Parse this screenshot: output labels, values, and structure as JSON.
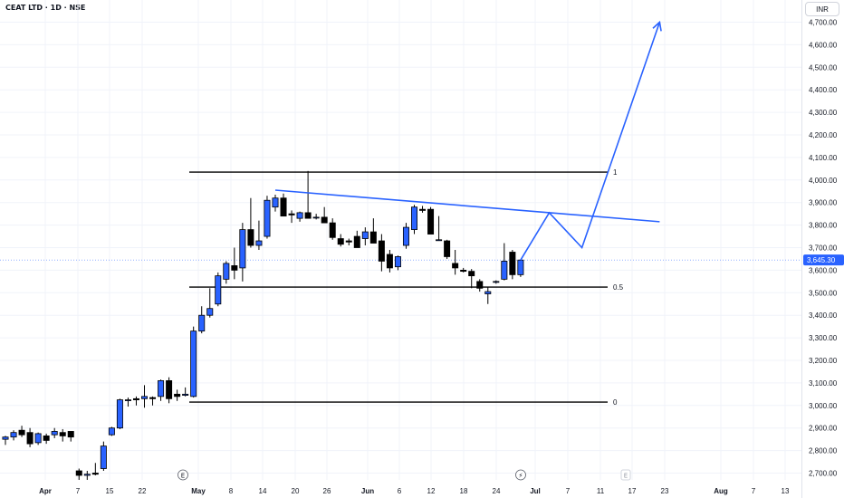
{
  "header": {
    "title": "CEAT LTD · 1D · NSE",
    "currency": "INR"
  },
  "chart_data": {
    "type": "candlestick",
    "title": "CEAT LTD · 1D · NSE",
    "ylim": [
      2650,
      4770
    ],
    "y_ticks": [
      "4,700.00",
      "4,600.00",
      "4,500.00",
      "4,400.00",
      "4,300.00",
      "4,200.00",
      "4,100.00",
      "4,000.00",
      "3,900.00",
      "3,800.00",
      "3,700.00",
      "3,600.00",
      "3,500.00",
      "3,400.00",
      "3,300.00",
      "3,200.00",
      "3,100.00",
      "3,000.00",
      "2,900.00",
      "2,800.00",
      "2,700.00"
    ],
    "y_tick_values": [
      4700,
      4600,
      4500,
      4400,
      4300,
      4200,
      4100,
      4000,
      3900,
      3800,
      3700,
      3600,
      3500,
      3400,
      3300,
      3200,
      3100,
      3000,
      2900,
      2800,
      2700
    ],
    "x_ticks": [
      {
        "label": "Apr",
        "month": true
      },
      {
        "label": "7"
      },
      {
        "label": "15"
      },
      {
        "label": "22"
      },
      {
        "label": "May",
        "month": true
      },
      {
        "label": "8"
      },
      {
        "label": "14"
      },
      {
        "label": "20"
      },
      {
        "label": "26"
      },
      {
        "label": "Jun",
        "month": true
      },
      {
        "label": "6"
      },
      {
        "label": "12"
      },
      {
        "label": "18"
      },
      {
        "label": "24"
      },
      {
        "label": "Jul",
        "month": true
      },
      {
        "label": "7"
      },
      {
        "label": "11"
      },
      {
        "label": "17"
      },
      {
        "label": "23"
      },
      {
        "label": "Aug",
        "month": true
      },
      {
        "label": "7"
      },
      {
        "label": "13"
      }
    ],
    "current_price": "3,645.30",
    "current_price_value": 3645.3,
    "colors": {
      "up": "#2962ff",
      "down": "#000000",
      "price_line": "#2962ff",
      "drawing": "#2962ff",
      "level": "#000000",
      "grid": "#f0f3fa"
    },
    "candles": [
      {
        "o": 2850,
        "h": 2865,
        "l": 2825,
        "c": 2860
      },
      {
        "o": 2860,
        "h": 2890,
        "l": 2845,
        "c": 2880
      },
      {
        "o": 2890,
        "h": 2910,
        "l": 2860,
        "c": 2870
      },
      {
        "o": 2880,
        "h": 2900,
        "l": 2815,
        "c": 2830
      },
      {
        "o": 2835,
        "h": 2880,
        "l": 2825,
        "c": 2875
      },
      {
        "o": 2865,
        "h": 2875,
        "l": 2830,
        "c": 2845
      },
      {
        "o": 2870,
        "h": 2900,
        "l": 2855,
        "c": 2885
      },
      {
        "o": 2880,
        "h": 2895,
        "l": 2840,
        "c": 2865
      },
      {
        "o": 2885,
        "h": 2885,
        "l": 2840,
        "c": 2860
      },
      {
        "o": 2710,
        "h": 2720,
        "l": 2670,
        "c": 2690
      },
      {
        "o": 2690,
        "h": 2710,
        "l": 2670,
        "c": 2695
      },
      {
        "o": 2700,
        "h": 2745,
        "l": 2690,
        "c": 2695
      },
      {
        "o": 2720,
        "h": 2840,
        "l": 2710,
        "c": 2820
      },
      {
        "o": 2870,
        "h": 2905,
        "l": 2865,
        "c": 2900
      },
      {
        "o": 2900,
        "h": 3030,
        "l": 2895,
        "c": 3025
      },
      {
        "o": 3025,
        "h": 3035,
        "l": 2995,
        "c": 3025
      },
      {
        "o": 3030,
        "h": 3040,
        "l": 3000,
        "c": 3025
      },
      {
        "o": 3030,
        "h": 3090,
        "l": 2990,
        "c": 3040
      },
      {
        "o": 3035,
        "h": 3040,
        "l": 3000,
        "c": 3030
      },
      {
        "o": 3040,
        "h": 3115,
        "l": 3020,
        "c": 3110
      },
      {
        "o": 3110,
        "h": 3125,
        "l": 3010,
        "c": 3030
      },
      {
        "o": 3050,
        "h": 3070,
        "l": 3020,
        "c": 3040
      },
      {
        "o": 3045,
        "h": 3080,
        "l": 3040,
        "c": 3050
      },
      {
        "o": 3040,
        "h": 3350,
        "l": 3035,
        "c": 3330
      },
      {
        "o": 3330,
        "h": 3440,
        "l": 3320,
        "c": 3400
      },
      {
        "o": 3400,
        "h": 3520,
        "l": 3390,
        "c": 3430
      },
      {
        "o": 3450,
        "h": 3590,
        "l": 3440,
        "c": 3575
      },
      {
        "o": 3560,
        "h": 3640,
        "l": 3540,
        "c": 3630
      },
      {
        "o": 3620,
        "h": 3700,
        "l": 3560,
        "c": 3600
      },
      {
        "o": 3610,
        "h": 3810,
        "l": 3550,
        "c": 3780
      },
      {
        "o": 3780,
        "h": 3920,
        "l": 3700,
        "c": 3710
      },
      {
        "o": 3710,
        "h": 3820,
        "l": 3690,
        "c": 3730
      },
      {
        "o": 3750,
        "h": 3930,
        "l": 3740,
        "c": 3910
      },
      {
        "o": 3880,
        "h": 3935,
        "l": 3860,
        "c": 3920
      },
      {
        "o": 3920,
        "h": 3940,
        "l": 3840,
        "c": 3840
      },
      {
        "o": 3850,
        "h": 3865,
        "l": 3810,
        "c": 3845
      },
      {
        "o": 3830,
        "h": 3860,
        "l": 3815,
        "c": 3855
      },
      {
        "o": 3855,
        "h": 4040,
        "l": 3830,
        "c": 3830
      },
      {
        "o": 3835,
        "h": 3850,
        "l": 3825,
        "c": 3835
      },
      {
        "o": 3835,
        "h": 3880,
        "l": 3810,
        "c": 3810
      },
      {
        "o": 3810,
        "h": 3830,
        "l": 3735,
        "c": 3745
      },
      {
        "o": 3740,
        "h": 3760,
        "l": 3705,
        "c": 3715
      },
      {
        "o": 3730,
        "h": 3740,
        "l": 3710,
        "c": 3725
      },
      {
        "o": 3750,
        "h": 3775,
        "l": 3700,
        "c": 3700
      },
      {
        "o": 3740,
        "h": 3790,
        "l": 3710,
        "c": 3770
      },
      {
        "o": 3770,
        "h": 3830,
        "l": 3720,
        "c": 3720
      },
      {
        "o": 3730,
        "h": 3760,
        "l": 3595,
        "c": 3640
      },
      {
        "o": 3670,
        "h": 3690,
        "l": 3590,
        "c": 3610
      },
      {
        "o": 3615,
        "h": 3665,
        "l": 3600,
        "c": 3660
      },
      {
        "o": 3710,
        "h": 3810,
        "l": 3695,
        "c": 3790
      },
      {
        "o": 3780,
        "h": 3890,
        "l": 3760,
        "c": 3880
      },
      {
        "o": 3870,
        "h": 3885,
        "l": 3855,
        "c": 3865
      },
      {
        "o": 3870,
        "h": 3880,
        "l": 3760,
        "c": 3760
      },
      {
        "o": 3735,
        "h": 3840,
        "l": 3730,
        "c": 3735
      },
      {
        "o": 3730,
        "h": 3735,
        "l": 3650,
        "c": 3660
      },
      {
        "o": 3630,
        "h": 3690,
        "l": 3580,
        "c": 3610
      },
      {
        "o": 3600,
        "h": 3610,
        "l": 3590,
        "c": 3595
      },
      {
        "o": 3595,
        "h": 3605,
        "l": 3520,
        "c": 3575
      },
      {
        "o": 3550,
        "h": 3560,
        "l": 3505,
        "c": 3520
      },
      {
        "o": 3495,
        "h": 3525,
        "l": 3450,
        "c": 3505
      },
      {
        "o": 3550,
        "h": 3555,
        "l": 3540,
        "c": 3550
      },
      {
        "o": 3560,
        "h": 3720,
        "l": 3555,
        "c": 3640
      },
      {
        "o": 3680,
        "h": 3690,
        "l": 3560,
        "c": 3580
      },
      {
        "o": 3580,
        "h": 3645,
        "l": 3570,
        "c": 3645
      }
    ],
    "levels": [
      {
        "label": "1",
        "value": 4035
      },
      {
        "label": "0.5",
        "value": 3525
      },
      {
        "label": "0",
        "value": 3015
      }
    ],
    "trendline": [
      {
        "i": 33,
        "p": 3955
      },
      {
        "i": 80,
        "p": 3815
      }
    ],
    "projection": [
      {
        "i": 63,
        "p": 3645
      },
      {
        "i": 66.5,
        "p": 3855
      },
      {
        "i": 70.5,
        "p": 3700
      },
      {
        "i": 80,
        "p": 4700
      }
    ],
    "event_markers": [
      "E",
      "⚡",
      "E"
    ]
  }
}
